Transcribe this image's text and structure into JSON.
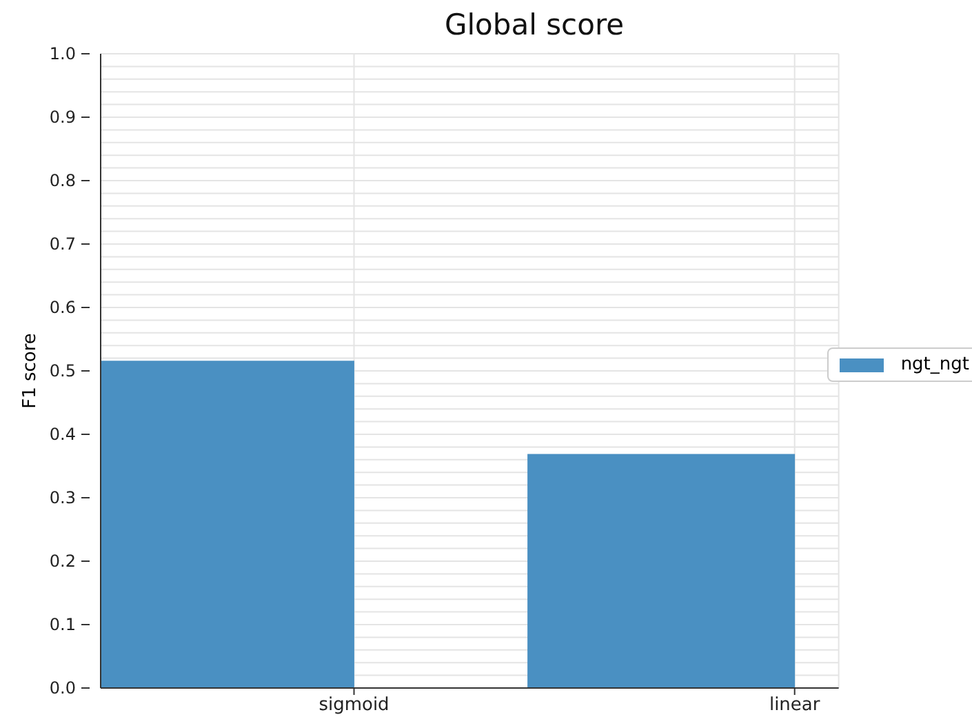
{
  "chart_data": {
    "type": "bar",
    "title": "Global score",
    "ylabel": "F1 score",
    "categories": [
      "sigmoid",
      "linear"
    ],
    "series": [
      {
        "name": "ngt_ngt",
        "color": "#4a90c2",
        "values": [
          0.516,
          0.369
        ]
      }
    ],
    "ylim": [
      0,
      1
    ],
    "yticks": [
      {
        "value": 0,
        "label": "0.0"
      },
      {
        "value": 0.02,
        "label": null
      },
      {
        "value": 0.04,
        "label": null
      },
      {
        "value": 0.06,
        "label": null
      },
      {
        "value": 0.08,
        "label": null
      },
      0.1,
      {
        "value": 0.12,
        "label": null
      },
      {
        "value": 0.14,
        "label": null
      },
      {
        "value": 0.16,
        "label": null
      },
      {
        "value": 0.18,
        "label": null
      },
      0.2,
      {
        "value": 0.22,
        "label": null
      },
      {
        "value": 0.24,
        "label": null
      },
      {
        "value": 0.26,
        "label": null
      },
      {
        "value": 0.28,
        "label": null
      },
      0.3,
      {
        "value": 0.32,
        "label": null
      },
      {
        "value": 0.34,
        "label": null
      },
      {
        "value": 0.36,
        "label": null
      },
      {
        "value": 0.38,
        "label": null
      },
      0.4,
      {
        "value": 0.42,
        "label": null
      },
      {
        "value": 0.44,
        "label": null
      },
      {
        "value": 0.46,
        "label": null
      },
      {
        "value": 0.48,
        "label": null
      },
      0.5,
      {
        "value": 0.52,
        "label": null
      },
      {
        "value": 0.54,
        "label": null
      },
      {
        "value": 0.56,
        "label": null
      },
      {
        "value": 0.58,
        "label": null
      },
      0.6,
      {
        "value": 0.62,
        "label": null
      },
      {
        "value": 0.64,
        "label": null
      },
      {
        "value": 0.66,
        "label": null
      },
      {
        "value": 0.68,
        "label": null
      },
      0.7,
      {
        "value": 0.72,
        "label": null
      },
      {
        "value": 0.74,
        "label": null
      },
      {
        "value": 0.76,
        "label": null
      },
      {
        "value": 0.78,
        "label": null
      },
      0.8,
      {
        "value": 0.82,
        "label": null
      },
      {
        "value": 0.84,
        "label": null
      },
      {
        "value": 0.86,
        "label": null
      },
      {
        "value": 0.88,
        "label": null
      },
      0.9,
      {
        "value": 0.92,
        "label": null
      },
      {
        "value": 0.94,
        "label": null
      },
      {
        "value": 0.96,
        "label": null
      },
      {
        "value": 0.98,
        "label": null
      },
      {
        "value": 1,
        "label": "1.0"
      }
    ],
    "grid": true,
    "legend": "right"
  }
}
